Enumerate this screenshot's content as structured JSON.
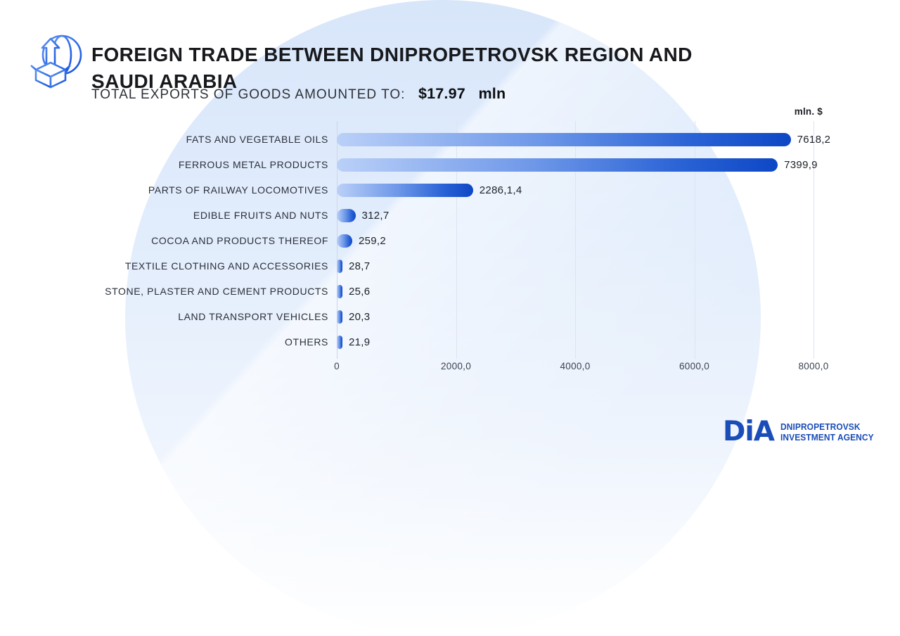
{
  "header": {
    "title_line1": "FOREIGN TRADE BETWEEN DNIPROPETROVSK REGION AND",
    "title_line2": "SAUDI ARABIA",
    "subtitle_prefix": "TOTAL EXPORTS OF GOODS AMOUNTED TO:",
    "subtitle_value": "$17.97",
    "subtitle_unit": "mln"
  },
  "chart_data": {
    "type": "bar",
    "orientation": "horizontal",
    "title": "Foreign trade between Dnipropetrovsk region and Saudi Arabia — exports of goods",
    "unit_label": "mln. $",
    "categories": [
      "FATS AND VEGETABLE OILS",
      "FERROUS METAL PRODUCTS",
      "PARTS OF RAILWAY LOCOMOTIVES",
      "EDIBLE FRUITS AND NUTS",
      "COCOA AND PRODUCTS THEREOF",
      "TEXTILE CLOTHING AND ACCESSORIES",
      "STONE, PLASTER AND CEMENT PRODUCTS",
      "LAND TRANSPORT VEHICLES",
      "OTHERS"
    ],
    "values": [
      7618.2,
      7399.9,
      2286.1,
      312.7,
      259.2,
      28.7,
      25.6,
      20.3,
      21.9
    ],
    "value_labels": [
      "7618,2",
      "7399,9",
      "2286,1,4",
      "312,7",
      "259,2",
      "28,7",
      "25,6",
      "20,3",
      "21,9"
    ],
    "xlim": [
      0,
      8000
    ],
    "x_ticks": [
      0,
      2000,
      4000,
      6000,
      8000
    ],
    "x_tick_labels": [
      "0",
      "2000,0",
      "4000,0",
      "6000,0",
      "8000,0"
    ],
    "grid": true,
    "legend": false,
    "bar_color_start": "#bad0f8",
    "bar_color_end": "#0d47c4"
  },
  "footer": {
    "logo_text": "DiA",
    "agency_line1": "DNIPROPETROVSK",
    "agency_line2": "INVESTMENT AGENCY"
  },
  "colors": {
    "accent_blue": "#1a4db8",
    "blob_blue": "#dce9fb",
    "title_text": "#17191d"
  }
}
